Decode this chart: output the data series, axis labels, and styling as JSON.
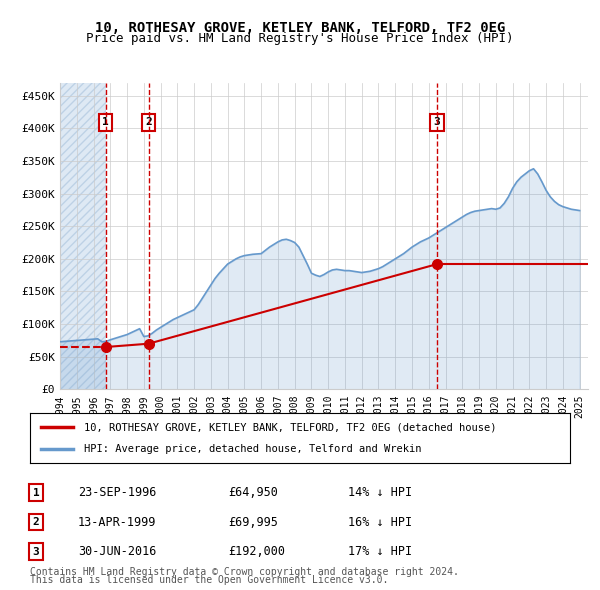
{
  "title1": "10, ROTHESAY GROVE, KETLEY BANK, TELFORD, TF2 0EG",
  "title2": "Price paid vs. HM Land Registry's House Price Index (HPI)",
  "ylabel": "",
  "xlim_start": 1994.0,
  "xlim_end": 2025.5,
  "ylim_bottom": 0,
  "ylim_top": 470000,
  "yticks": [
    0,
    50000,
    100000,
    150000,
    200000,
    250000,
    300000,
    350000,
    400000,
    450000
  ],
  "ytick_labels": [
    "£0",
    "£50K",
    "£100K",
    "£150K",
    "£200K",
    "£250K",
    "£300K",
    "£350K",
    "£400K",
    "£450K"
  ],
  "xticks": [
    1994,
    1995,
    1996,
    1997,
    1998,
    1999,
    2000,
    2001,
    2002,
    2003,
    2004,
    2005,
    2006,
    2007,
    2008,
    2009,
    2010,
    2011,
    2012,
    2013,
    2014,
    2015,
    2016,
    2017,
    2018,
    2019,
    2020,
    2021,
    2022,
    2023,
    2024,
    2025
  ],
  "sale_dates": [
    1996.73,
    1999.28,
    2016.5
  ],
  "sale_prices": [
    64950,
    69995,
    192000
  ],
  "sale_labels": [
    "1",
    "2",
    "3"
  ],
  "hpi_x": [
    1994.0,
    1994.25,
    1994.5,
    1994.75,
    1995.0,
    1995.25,
    1995.5,
    1995.75,
    1996.0,
    1996.25,
    1996.5,
    1996.75,
    1997.0,
    1997.25,
    1997.5,
    1997.75,
    1998.0,
    1998.25,
    1998.5,
    1998.75,
    1999.0,
    1999.25,
    1999.5,
    1999.75,
    2000.0,
    2000.25,
    2000.5,
    2000.75,
    2001.0,
    2001.25,
    2001.5,
    2001.75,
    2002.0,
    2002.25,
    2002.5,
    2002.75,
    2003.0,
    2003.25,
    2003.5,
    2003.75,
    2004.0,
    2004.25,
    2004.5,
    2004.75,
    2005.0,
    2005.25,
    2005.5,
    2005.75,
    2006.0,
    2006.25,
    2006.5,
    2006.75,
    2007.0,
    2007.25,
    2007.5,
    2007.75,
    2008.0,
    2008.25,
    2008.5,
    2008.75,
    2009.0,
    2009.25,
    2009.5,
    2009.75,
    2010.0,
    2010.25,
    2010.5,
    2010.75,
    2011.0,
    2011.25,
    2011.5,
    2011.75,
    2012.0,
    2012.25,
    2012.5,
    2012.75,
    2013.0,
    2013.25,
    2013.5,
    2013.75,
    2014.0,
    2014.25,
    2014.5,
    2014.75,
    2015.0,
    2015.25,
    2015.5,
    2015.75,
    2016.0,
    2016.25,
    2016.5,
    2016.75,
    2017.0,
    2017.25,
    2017.5,
    2017.75,
    2018.0,
    2018.25,
    2018.5,
    2018.75,
    2019.0,
    2019.25,
    2019.5,
    2019.75,
    2020.0,
    2020.25,
    2020.5,
    2020.75,
    2021.0,
    2021.25,
    2021.5,
    2021.75,
    2022.0,
    2022.25,
    2022.5,
    2022.75,
    2023.0,
    2023.25,
    2023.5,
    2023.75,
    2024.0,
    2024.25,
    2024.5,
    2024.75,
    2025.0
  ],
  "hpi_y": [
    73000,
    73500,
    74000,
    74500,
    75000,
    75500,
    76000,
    76500,
    77000,
    77500,
    73000,
    73500,
    76000,
    78000,
    80000,
    82000,
    84000,
    87000,
    90000,
    93000,
    81000,
    82000,
    86000,
    91000,
    95000,
    99000,
    103000,
    107000,
    110000,
    113000,
    116000,
    119000,
    122000,
    130000,
    140000,
    150000,
    160000,
    170000,
    178000,
    185000,
    192000,
    196000,
    200000,
    203000,
    205000,
    206000,
    207000,
    207500,
    208000,
    213000,
    218000,
    222000,
    226000,
    229000,
    230000,
    228000,
    225000,
    218000,
    205000,
    192000,
    178000,
    175000,
    173000,
    176000,
    180000,
    183000,
    184000,
    183000,
    182000,
    182000,
    181000,
    180000,
    179000,
    180000,
    181000,
    183000,
    185000,
    188000,
    192000,
    196000,
    200000,
    204000,
    208000,
    213000,
    218000,
    222000,
    226000,
    229000,
    232000,
    236000,
    240000,
    244000,
    248000,
    252000,
    256000,
    260000,
    264000,
    268000,
    271000,
    273000,
    274000,
    275000,
    276000,
    277000,
    276000,
    278000,
    285000,
    295000,
    308000,
    318000,
    325000,
    330000,
    335000,
    338000,
    330000,
    318000,
    305000,
    295000,
    288000,
    283000,
    280000,
    278000,
    276000,
    275000,
    274000
  ],
  "property_line_x": [
    1996.73,
    1999.28,
    2016.5
  ],
  "property_line_y": [
    64950,
    69995,
    192000
  ],
  "hatch_xlim": [
    1994.0,
    1996.73
  ],
  "legend_line1": "10, ROTHESAY GROVE, KETLEY BANK, TELFORD, TF2 0EG (detached house)",
  "legend_line2": "HPI: Average price, detached house, Telford and Wrekin",
  "table_data": [
    {
      "num": "1",
      "date": "23-SEP-1996",
      "price": "£64,950",
      "hpi": "14% ↓ HPI"
    },
    {
      "num": "2",
      "date": "13-APR-1999",
      "price": "£69,995",
      "hpi": "16% ↓ HPI"
    },
    {
      "num": "3",
      "date": "30-JUN-2016",
      "price": "£192,000",
      "hpi": "17% ↓ HPI"
    }
  ],
  "footer1": "Contains HM Land Registry data © Crown copyright and database right 2024.",
  "footer2": "This data is licensed under the Open Government Licence v3.0.",
  "red_color": "#cc0000",
  "blue_color": "#6699cc",
  "hatch_color": "#d0e0f0",
  "bg_color": "#ffffff",
  "grid_color": "#cccccc"
}
